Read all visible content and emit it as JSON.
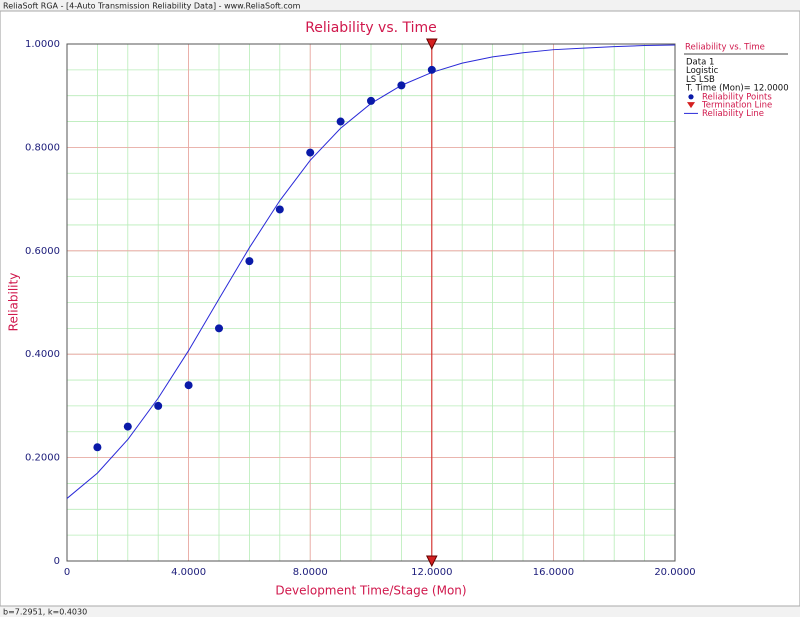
{
  "window_title": "ReliaSoft RGA - [4-Auto Transmission Reliability Data] - www.ReliaSoft.com",
  "status": "b=7.2951, k=0.4030",
  "chart_data": {
    "type": "scatter",
    "title": "Reliability vs. Time",
    "xlabel": "Development Time/Stage (Mon)",
    "ylabel": "Reliability",
    "xlim": [
      0,
      20
    ],
    "ylim": [
      0,
      1
    ],
    "xticks": [
      0,
      {
        "value": 4,
        "label": "4.0000"
      },
      {
        "value": 8,
        "label": "8.0000"
      },
      {
        "value": 12,
        "label": "12.0000"
      },
      {
        "value": 16,
        "label": "16.0000"
      },
      {
        "value": 20,
        "label": "20.0000"
      }
    ],
    "yticks": [
      0,
      {
        "value": 0.2,
        "label": "0.2000"
      },
      {
        "value": 0.4,
        "label": "0.4000"
      },
      {
        "value": 0.6,
        "label": "0.6000"
      },
      {
        "value": 0.8,
        "label": "0.8000"
      },
      {
        "value": 1,
        "label": "1.0000"
      }
    ],
    "grid": true,
    "minor_grid": {
      "x_step": 1,
      "y_step": 0.05
    },
    "series": [
      {
        "name": "Reliability Points",
        "type": "scatter",
        "color": "#0a1aa8",
        "x": [
          1,
          2,
          3,
          4,
          5,
          6,
          7,
          8,
          9,
          10,
          11,
          12
        ],
        "values": [
          0.22,
          0.26,
          0.3,
          0.34,
          0.45,
          0.58,
          0.68,
          0.79,
          0.85,
          0.89,
          0.92,
          0.95
        ]
      },
      {
        "name": "Reliability Line",
        "type": "line",
        "color": "#2a2ad8",
        "x": [
          0,
          1,
          2,
          3,
          4,
          5,
          6,
          7,
          8,
          9,
          10,
          11,
          12,
          13,
          14,
          15,
          16,
          17,
          18,
          19,
          20
        ],
        "values": [
          0.121,
          0.17,
          0.235,
          0.315,
          0.407,
          0.507,
          0.606,
          0.697,
          0.775,
          0.837,
          0.885,
          0.92,
          0.945,
          0.963,
          0.975,
          0.983,
          0.989,
          0.992,
          0.995,
          0.997,
          0.998
        ]
      }
    ],
    "termination": {
      "name": "Termination Line",
      "x": 12,
      "color": "#d42020"
    },
    "legend": {
      "title": "Reliability vs. Time",
      "lines": [
        "Data 1",
        "Logistic",
        "LS LSB",
        "T. Time (Mon)= 12.0000"
      ]
    }
  }
}
